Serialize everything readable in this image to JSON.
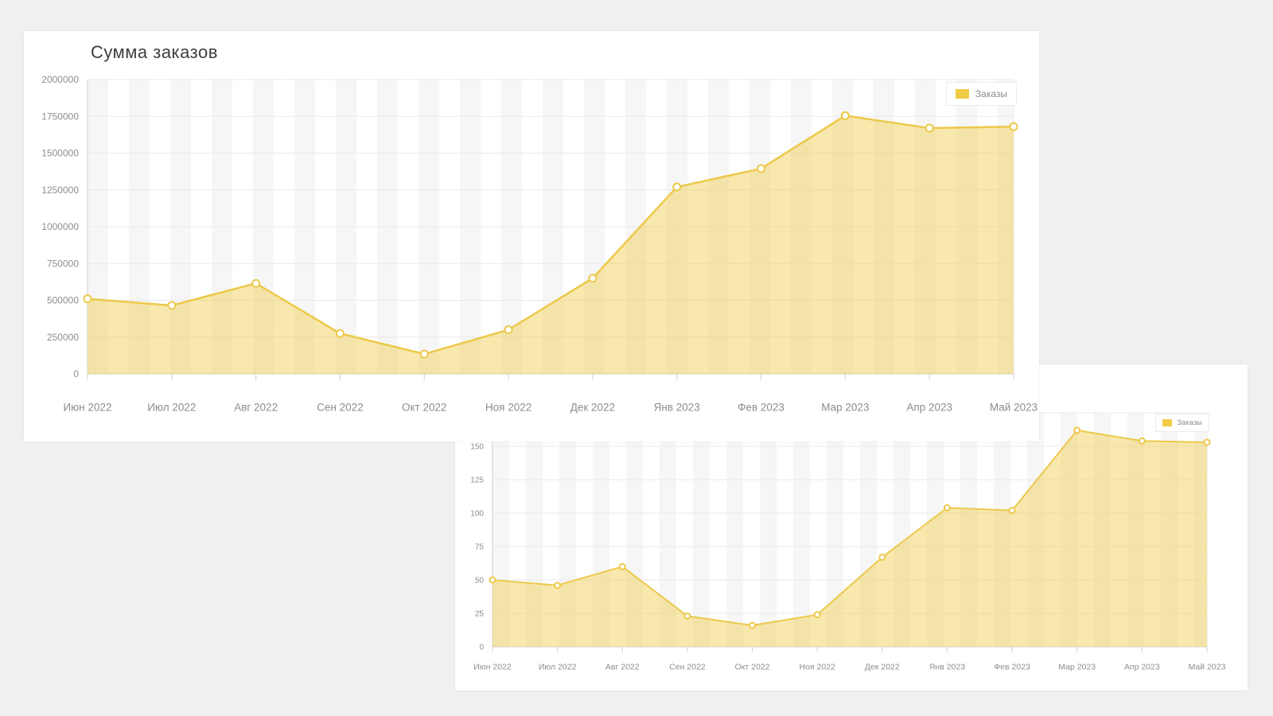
{
  "colors": {
    "page_bg": "#f0f0ee",
    "card_bg": "#ffffff",
    "title_text": "#3e3e3e",
    "axis_label": "#8d8d8d",
    "gridline": "#e9e9e9",
    "axis_line": "#cfcfcf",
    "stripe": "#f6f6f6",
    "line": "#ecc94b",
    "area_fill": "rgba(242,205,74,0.45)",
    "point_fill": "#ffffff",
    "legend_swatch": "#f0cb45"
  },
  "chart_data": [
    {
      "type": "area",
      "title": "Сумма заказов",
      "categories": [
        "Июн 2022",
        "Июл 2022",
        "Авг 2022",
        "Сен 2022",
        "Окт 2022",
        "Ноя 2022",
        "Дек 2022",
        "Янв 2023",
        "Фев 2023",
        "Мар 2023",
        "Апр 2023",
        "Май 2023"
      ],
      "series": [
        {
          "name": "Заказы",
          "values": [
            510000,
            465000,
            615000,
            275000,
            135000,
            300000,
            650000,
            1270000,
            1395000,
            1755000,
            1670000,
            1680000
          ]
        }
      ],
      "xlabel": "",
      "ylabel": "",
      "ylim": [
        0,
        2000000
      ],
      "ytick_step": 250000,
      "ytick_max_labeled": 2000000,
      "grid": true,
      "legend_position": "top-right"
    },
    {
      "type": "area",
      "title": "",
      "categories": [
        "Июн 2022",
        "Июл 2022",
        "Авг 2022",
        "Сен 2022",
        "Окт 2022",
        "Ноя 2022",
        "Дек 2022",
        "Янв 2023",
        "Фев 2023",
        "Мар 2023",
        "Апр 2023",
        "Май 2023"
      ],
      "series": [
        {
          "name": "Заказы",
          "values": [
            50,
            46,
            60,
            23,
            16,
            24,
            67,
            104,
            102,
            162,
            154,
            153
          ]
        }
      ],
      "xlabel": "",
      "ylabel": "",
      "ylim": [
        0,
        175
      ],
      "ytick_step": 25,
      "ytick_max_labeled": 150,
      "grid": true,
      "legend_position": "top-right"
    }
  ]
}
